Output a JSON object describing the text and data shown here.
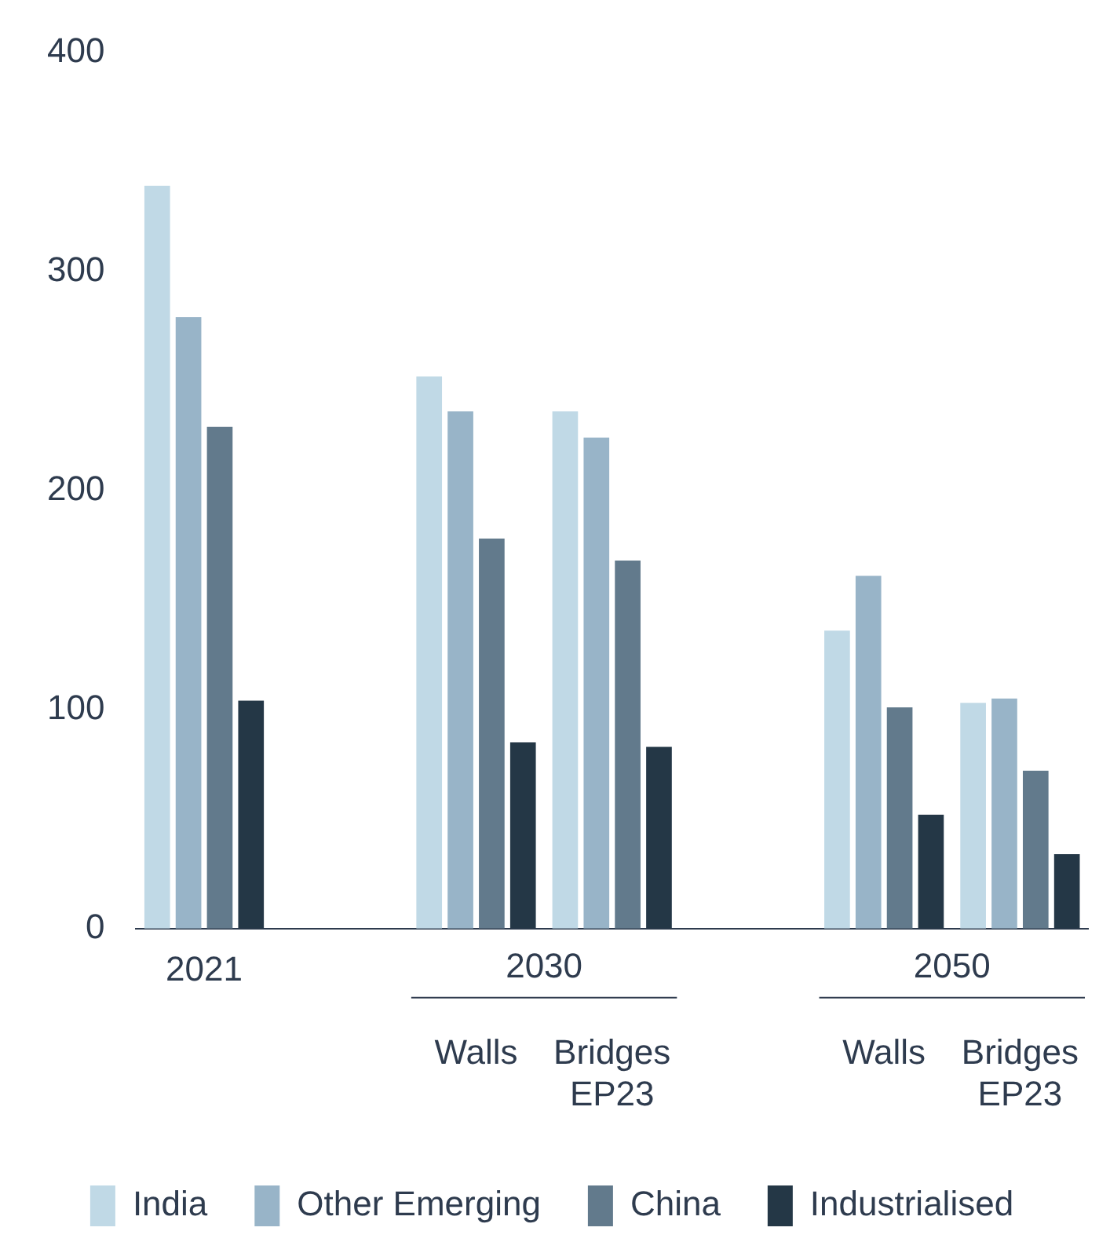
{
  "chart_data": {
    "type": "bar",
    "categories": [
      "2021",
      null,
      "Walls",
      "Bridges EP23",
      null,
      "Walls",
      "Bridges EP23"
    ],
    "annotations": [
      "2030",
      "2050"
    ],
    "series": [
      {
        "name": "India",
        "color": "#c0d9e6",
        "values": [
          339,
          null,
          252,
          236,
          null,
          136,
          103
        ]
      },
      {
        "name": "Other Emerging",
        "color": "#98b4c8",
        "values": [
          279,
          null,
          236,
          224,
          null,
          161,
          105
        ]
      },
      {
        "name": "China",
        "color": "#627a8c",
        "values": [
          229,
          null,
          178,
          168,
          null,
          101,
          72
        ]
      },
      {
        "name": "Industrialised",
        "color": "#243746",
        "values": [
          104,
          null,
          85,
          83,
          null,
          52,
          34
        ]
      }
    ],
    "ylim": [
      0,
      400
    ],
    "yticks": [
      0,
      100,
      200,
      300,
      400
    ],
    "grid": false,
    "legend": "bottom"
  }
}
